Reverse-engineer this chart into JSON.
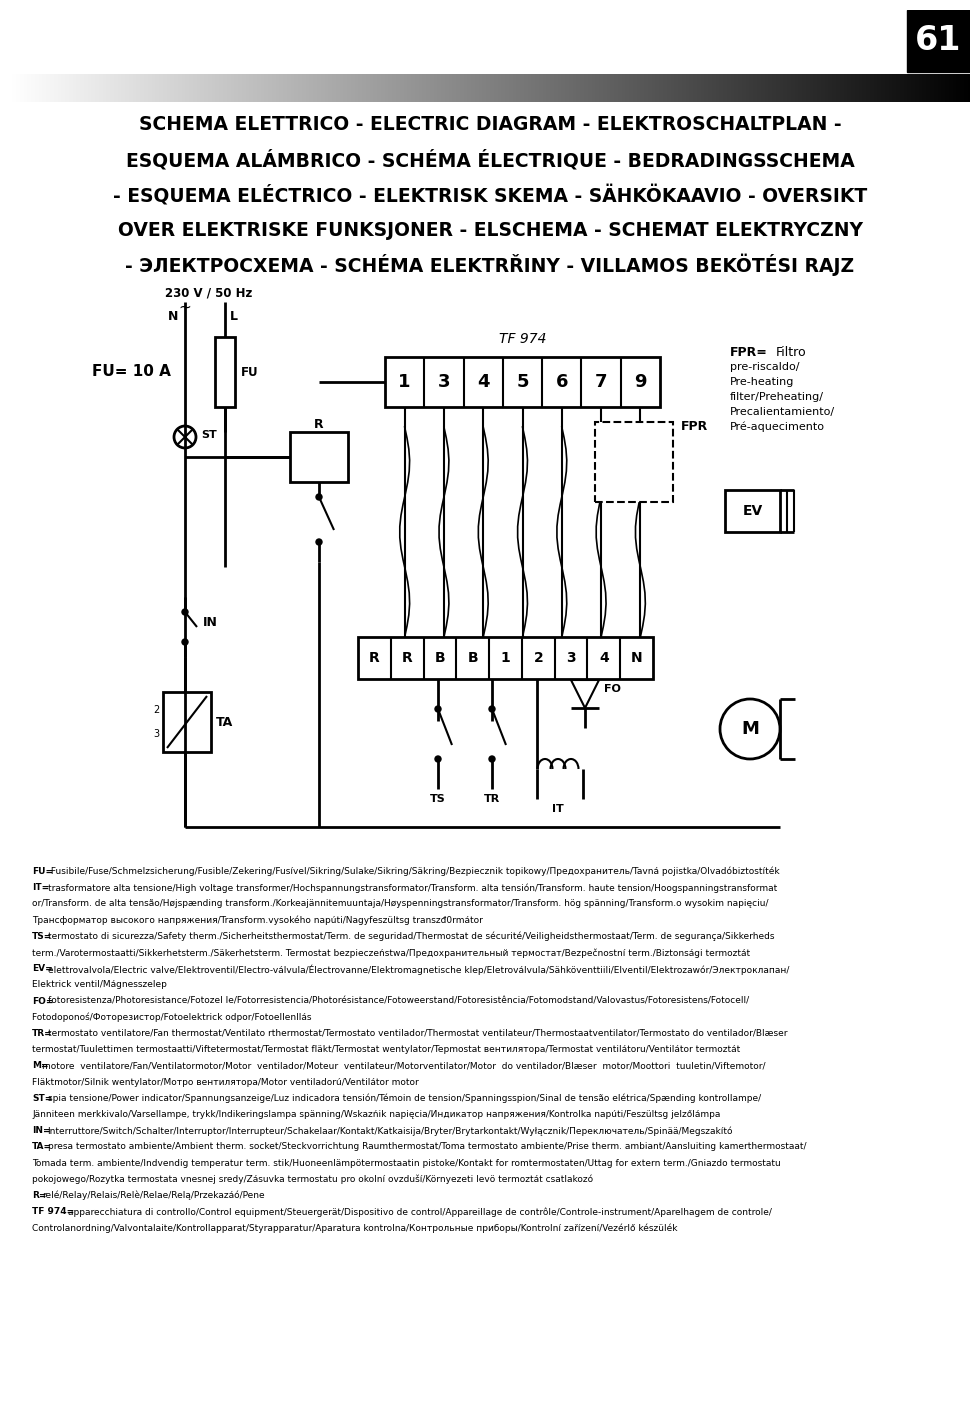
{
  "page_number": "61",
  "title_lines": [
    "SCHEMA ELETTRICO - ELECTRIC DIAGRAM - ELEKTROSCHALTPLAN -",
    "ESQUEMA ALÁMBRICO - SCHÉMA ÉLECTRIQUE - BEDRADINGSSCHEMA",
    "- ESQUEMA ELÉCTRICO - ELEKTRISK SKEMA - SÄHKÖKAAVIO - OVERSIKT",
    "OVER ELEKTRISKE FUNKSJONER - ELSCHEMA - SCHEMAT ELEKTRYCZNY",
    "- ЭЛЕКТРОСХЕМА - SCHÉMA ELEKTRŘINY - VILLAMOS BEKÖTÉSI RAJZ"
  ],
  "fu_label": "FU= 10 A",
  "voltage_label": "230 V / 50 Hz",
  "tf_label": "TF 974",
  "terminals_top": [
    "1",
    "3",
    "4",
    "5",
    "6",
    "7",
    "9"
  ],
  "terminals_bottom": [
    "R",
    "R",
    "B",
    "B",
    "1",
    "2",
    "3",
    "4",
    "N"
  ],
  "fpr_text": [
    "FPR=",
    "Filtro",
    "pre-riscaldo/",
    "Pre-heating",
    "filter/Preheating/",
    "Precalientamiento/",
    "Pré-aquecimento"
  ],
  "bottom_text_lines": [
    [
      "FU=",
      " Fusibile/Fuse/Schmelzsicherung/Fusible/Zekering/Fusível/Sikring/Sulake/Sikring/Säkring/Bezpiecznik topikowy/Предохранитель/Tavná pojistka/Olvadóbiztostíték"
    ],
    [
      "IT=",
      "trasformatore alta tensione/High voltage transformer/Hochspannungstransformator/Transform. alta tensión/Transform. haute tension/Hoogspanningstransformat"
    ],
    [
      "",
      "or/Transform. de alta tensão/Højspænding transform./Korkeajännitemuuntaja/Høyspenningstransformator/Transform. hög spänning/Transform.o wysokim napięciu/"
    ],
    [
      "",
      "Трансформатор высокого напряжения/Transform.vysokého napúti/Nagyfeszültsg transzđ0rmátor"
    ],
    [
      "TS=",
      "termostato di sicurezza/Safety therm./Sicherheitsthermostat/Term. de seguridad/Thermostat de sécurité/Veiligheidsthermostaat/Term. de segurança/Sikkerheds"
    ],
    [
      "",
      "term./Varotermostaatti/Sikkerhetsterm./Säkerhetsterm. Termostat bezpieczeństwa/Предохранительный термостат/Bezpečnostní term./Biztonsági termoztát"
    ],
    [
      "EV=",
      "elettrovalvola/Electric valve/Elektroventil/Electro-válvula/Électrovanne/Elektromagnetische klep/Eletroválvula/Sähköventtiili/Elventil/Elektrozawór/Электроклапан/"
    ],
    [
      "",
      "Elektrick ventil/Mágnesszelep"
    ],
    [
      "FO=",
      "fotoresistenza/Photoresistance/Fotozel le/Fotorresistencia/Photorésistance/Fotoweerstand/Fotoresistência/Fotomodstand/Valovastus/Fotoresistens/Fotocell/"
    ],
    [
      "",
      "Fotodoponoś/Фоторезистор/Fotoelektrick odpor/Fotoellenllás"
    ],
    [
      "TR=",
      "termostato ventilatore/Fan thermostat/Ventilato rthermostat/Termostato ventilador/Thermostat ventilateur/Thermostaatventilator/Termostato do ventilador/Blæser"
    ],
    [
      "",
      "termostat/Tuulettimen termostaatti/Viftetermostat/Termostat fläkt/Termostat wentylator/Tepmostat вентилятора/Termostat ventilátoru/Ventilátor termoztát"
    ],
    [
      "M=",
      "motore  ventilatore/Fan/Ventilatormotor/Motor  ventilador/Moteur  ventilateur/Motorventilator/Motor  do ventilador/Blæser  motor/Moottori  tuuletin/Viftemotor/"
    ],
    [
      "",
      "Fläktmotor/Silnik wentylator/Мотро вентилятора/Motor ventiladorú/Ventilátor motor"
    ],
    [
      "ST=",
      "spia tensione/Power indicator/Spannungsanzeige/Luz indicadora tensión/Témoin de tension/Spanningsspion/Sinal de tensão elétrica/Spænding kontrollampe/"
    ],
    [
      "",
      "Jänniteen merkkivalo/Varsellampe, trykk/Indikeringslampa spänning/Wskazńik napięcia/Индикатор напряжения/Kontrolka napúti/Feszültsg jelzőlámpa"
    ],
    [
      "IN=",
      "Interruttore/Switch/Schalter/Interruptor/Interrupteur/Schakelaar/Kontakt/Katkaisija/Bryter/Brytarkontakt/Wyłącznik/Переключатель/Spinää/Megszakító"
    ],
    [
      "TA=",
      "presa termostato ambiente/Ambient therm. socket/Steckvorrichtung Raumthermostat/Toma termostato ambiente/Prise therm. ambiant/Aansluiting kamerthermostaat/"
    ],
    [
      "",
      "Tomada term. ambiente/Indvendig temperatur term. stik/Huoneenlämpötermostaatin pistoke/Kontakt for romtermostaten/Uttag for extern term./Gniazdo termostatu"
    ],
    [
      "",
      "pokojowego/Rozytka termostata vnesnej sredy/Zásuvka termostatu pro okolní ovzduší/Környezeti levö termoztát csatlakozó"
    ],
    [
      "R=",
      "relé/Relay/Relais/Relè/Relae/Relą/Przekazáó/Pene"
    ],
    [
      "TF 974=",
      "apparecchiatura di controllo/Control equipment/Steuergerät/Dispositivo de control/Appareillage de contrôle/Controle-instrument/Aparelhagem de controle/"
    ],
    [
      "",
      "Controlanordning/Valvontalaite/Kontrollapparat/Styrapparatur/Aparatura kontrolna/Контрольные приборы/Kontrolní zařízení/Vezérlő készülék"
    ]
  ],
  "bg_color": "#ffffff"
}
